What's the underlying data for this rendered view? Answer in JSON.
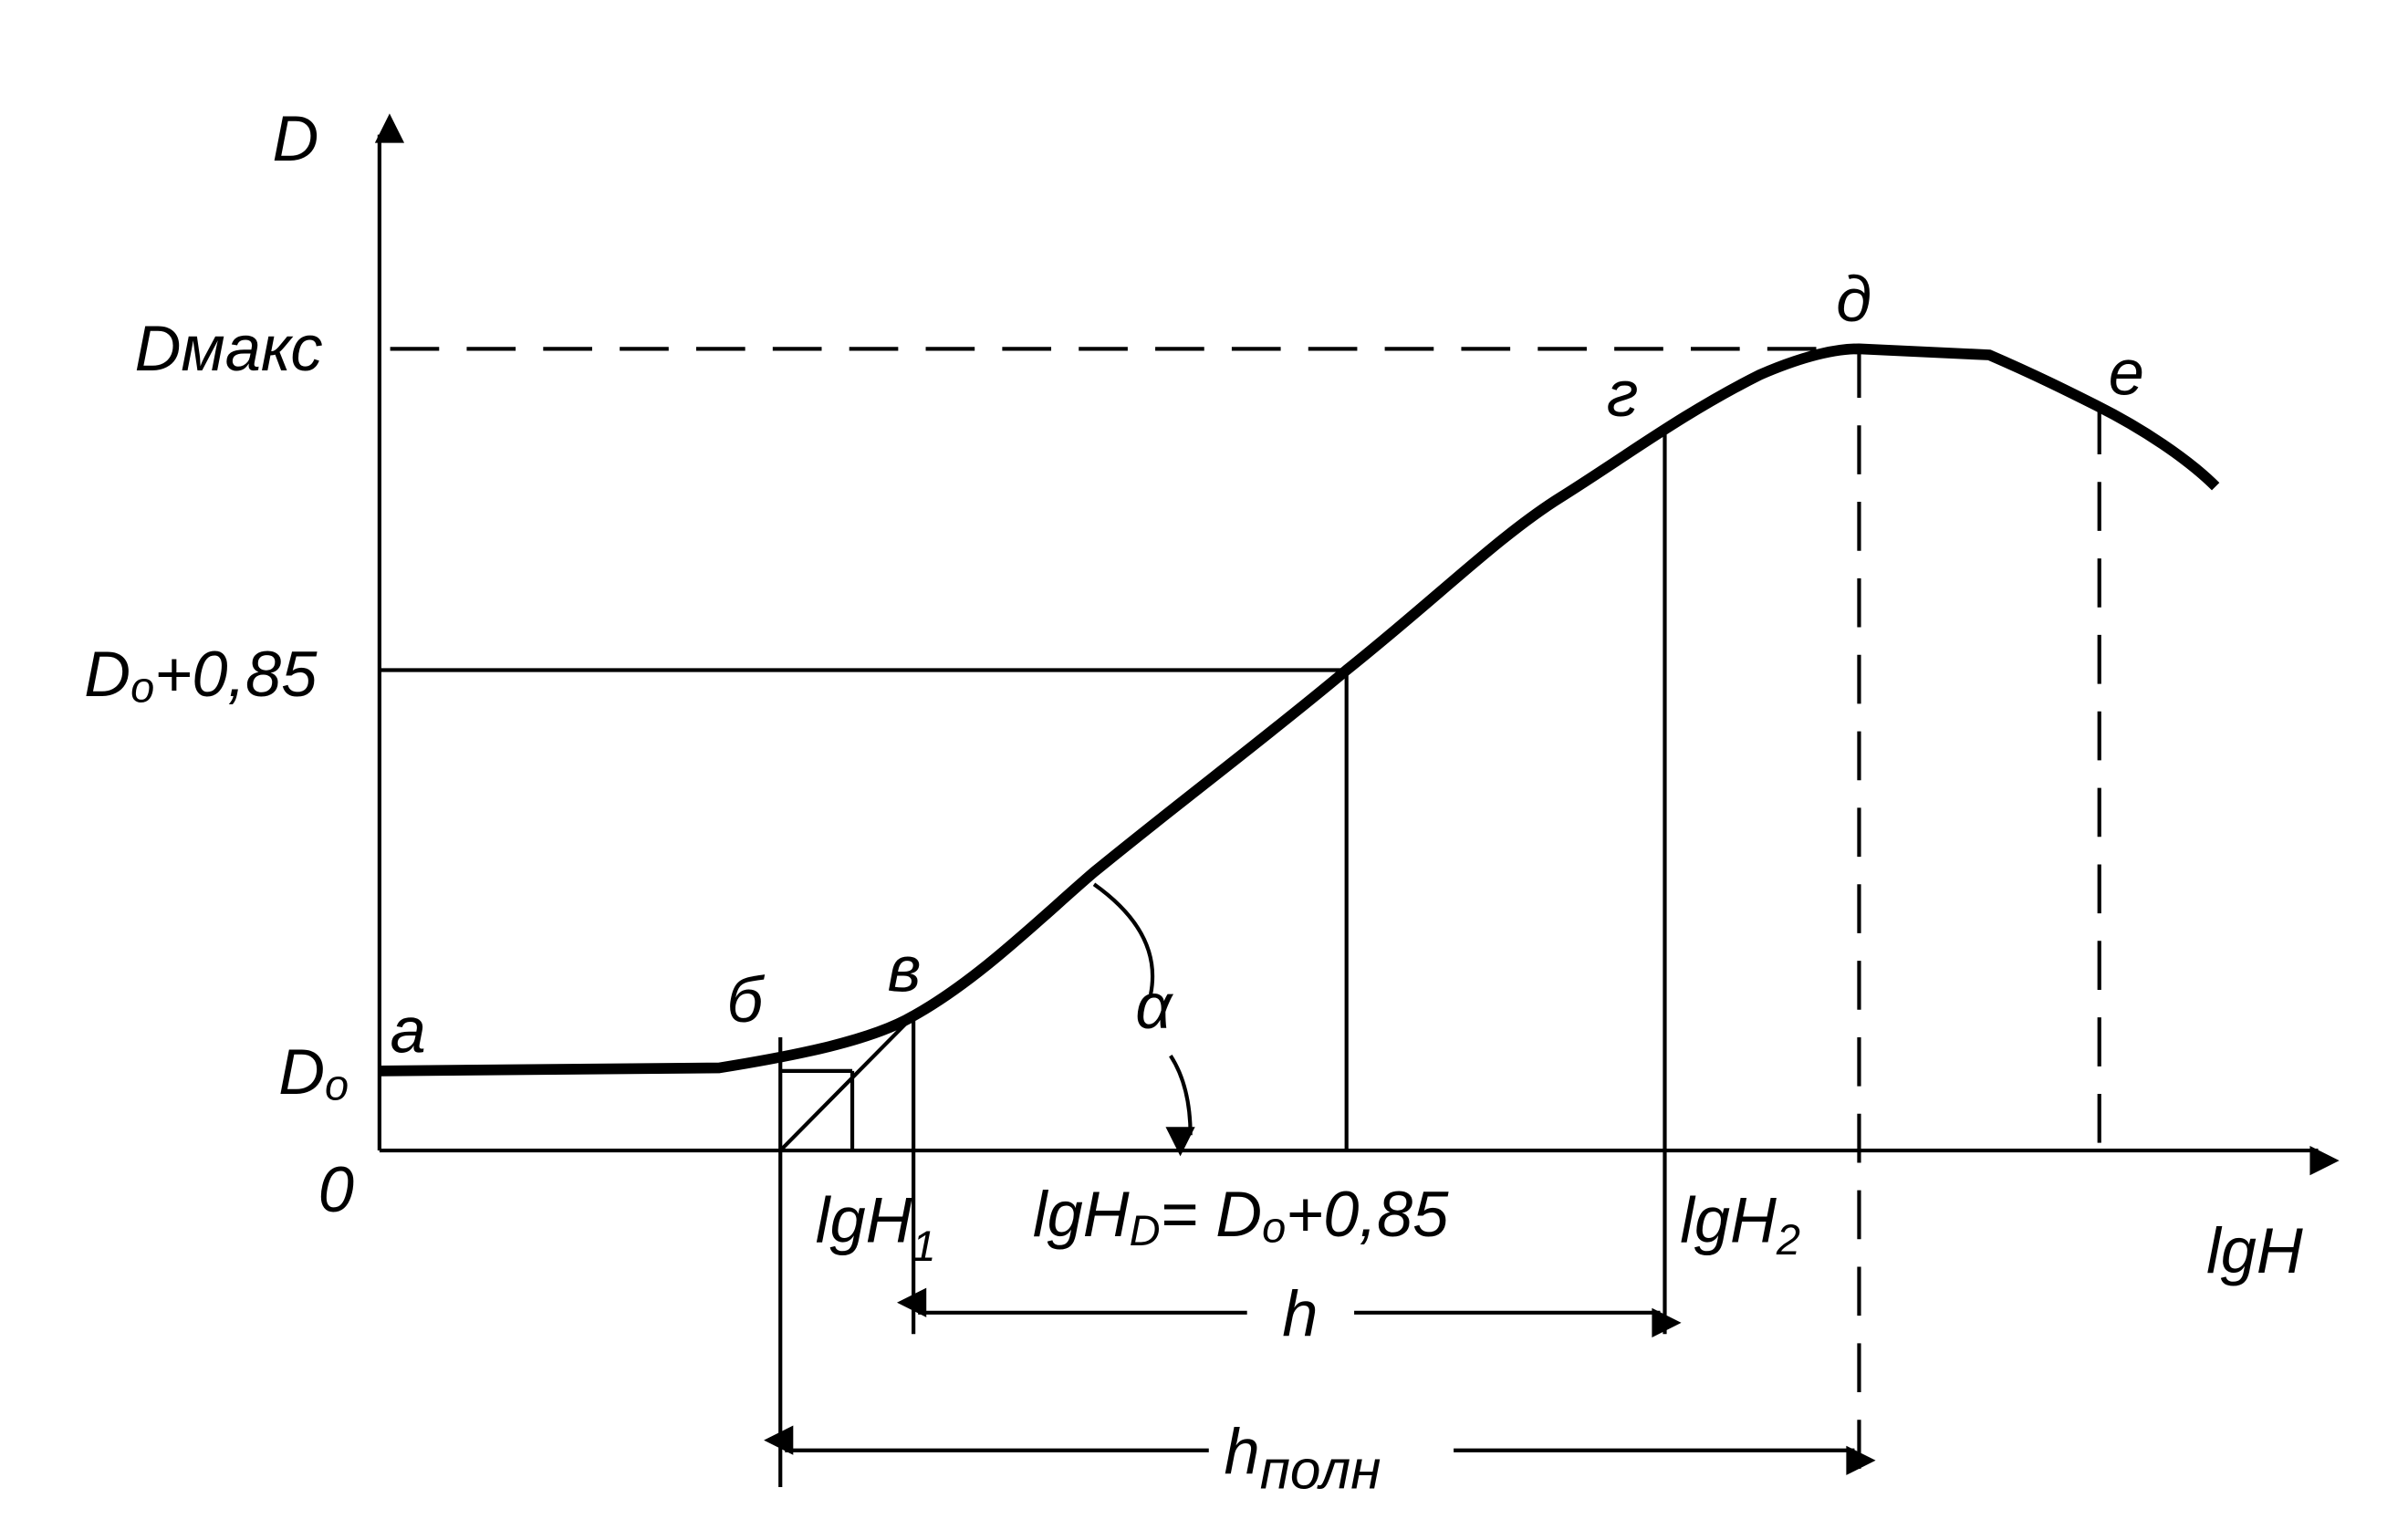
{
  "axes": {
    "y": "D",
    "x": "lgH",
    "origin": "0"
  },
  "y_labels": {
    "d_max": "Dмакс",
    "d0_085": {
      "base": "D",
      "sub": "o",
      "rest": "+0,85"
    },
    "d0": {
      "base": "D",
      "sub": "o"
    }
  },
  "points": {
    "a": "а",
    "b": "б",
    "v": "в",
    "g": "г",
    "d": "д",
    "e": "е"
  },
  "angle": "α",
  "x_labels": {
    "lgh1": {
      "base": "lgH",
      "sub": "1"
    },
    "lghd": {
      "base": "lgH",
      "sub": "D",
      "rest": "= D",
      "sub2": "o",
      "rest2": "+0,85"
    },
    "lgh2": {
      "base": "lgH",
      "sub": "2"
    }
  },
  "dimensions": {
    "h": "h",
    "h_full": {
      "base": "h",
      "sub": "полн"
    }
  }
}
